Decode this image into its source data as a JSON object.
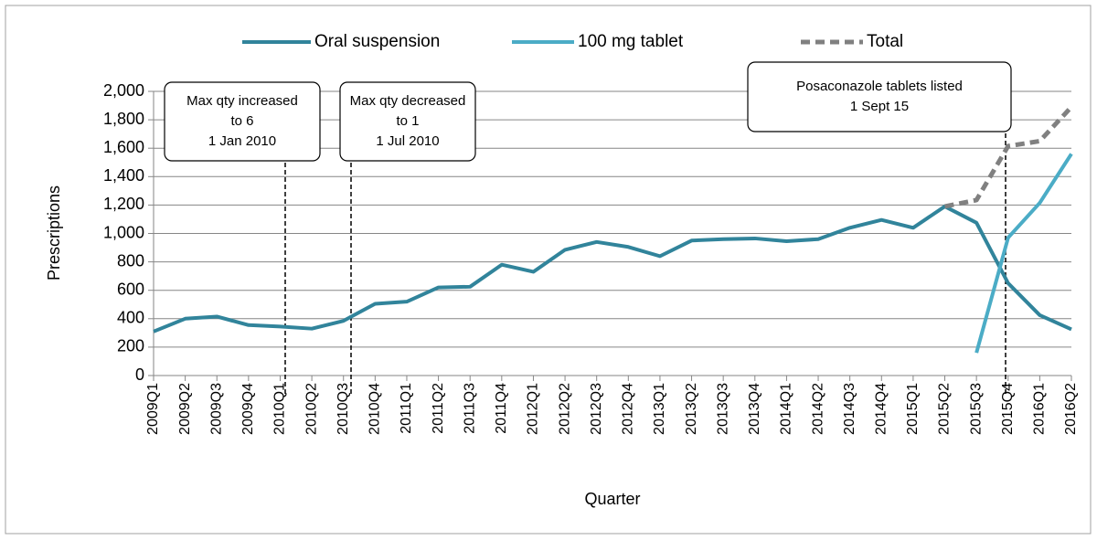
{
  "chart_data": {
    "type": "line",
    "x_label": "Quarter",
    "y_label": "Prescriptions",
    "categories": [
      "2009Q1",
      "2009Q2",
      "2009Q3",
      "2009Q4",
      "2010Q1",
      "2010Q2",
      "2010Q3",
      "2010Q4",
      "2011Q1",
      "2011Q2",
      "2011Q3",
      "2011Q4",
      "2012Q1",
      "2012Q2",
      "2012Q3",
      "2012Q4",
      "2013Q1",
      "2013Q2",
      "2013Q3",
      "2013Q4",
      "2014Q1",
      "2014Q2",
      "2014Q3",
      "2014Q4",
      "2015Q1",
      "2015Q2",
      "2015Q3",
      "2015Q4",
      "2016Q1",
      "2016Q2"
    ],
    "series": [
      {
        "name": "Oral suspension",
        "color": "#31849b",
        "values": [
          310,
          400,
          415,
          355,
          345,
          330,
          385,
          505,
          520,
          620,
          625,
          780,
          730,
          885,
          940,
          905,
          840,
          950,
          960,
          965,
          945,
          960,
          1040,
          1095,
          1040,
          1190,
          1075,
          650,
          425,
          325
        ]
      },
      {
        "name": "100 mg tablet",
        "color": "#4bacc6",
        "values": [
          null,
          null,
          null,
          null,
          null,
          null,
          null,
          null,
          null,
          null,
          null,
          null,
          null,
          null,
          null,
          null,
          null,
          null,
          null,
          null,
          null,
          null,
          null,
          null,
          null,
          null,
          160,
          970,
          1215,
          1560
        ]
      },
      {
        "name": "Total",
        "color": "#808080",
        "dashed": true,
        "values": [
          null,
          null,
          null,
          null,
          null,
          null,
          null,
          null,
          null,
          null,
          null,
          null,
          null,
          null,
          null,
          null,
          null,
          null,
          null,
          null,
          null,
          null,
          null,
          null,
          null,
          1190,
          1235,
          1615,
          1650,
          1890
        ]
      }
    ],
    "ylim": [
      0,
      2000
    ],
    "yticks": [
      0,
      200,
      400,
      600,
      800,
      {
        "value": 1000,
        "label": "1,000"
      },
      {
        "value": 1200,
        "label": "1,200"
      },
      {
        "value": 1400,
        "label": "1,400"
      },
      {
        "value": 1600,
        "label": "1,600"
      },
      {
        "value": 1800,
        "label": "1,800"
      },
      {
        "value": 2000,
        "label": "2,000"
      }
    ],
    "grid": true,
    "legend": "top",
    "annotations": [
      {
        "lines": [
          "Max qty increased",
          "to 6",
          "1 Jan 2010"
        ]
      },
      {
        "lines": [
          "Max qty decreased",
          "to 1",
          "1 Jul 2010"
        ]
      },
      {
        "lines": [
          "Posaconazole tablets listed",
          "1 Sept 15"
        ]
      }
    ]
  }
}
